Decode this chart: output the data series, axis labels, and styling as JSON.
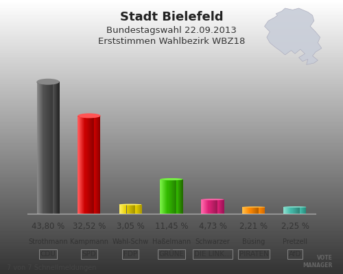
{
  "title": "Stadt Bielefeld",
  "subtitle1": "Bundestagswahl 22.09.2013",
  "subtitle2": "Erststimmen Wahlbezirk WBZ18",
  "footer": "7 von 7 Schnellmeldungen",
  "candidate_names": [
    "Strothmann",
    "Kampmann",
    "Wahl-Schw",
    "Haßelmann",
    "Schwarzer",
    "Büsing",
    "Pretzell"
  ],
  "party_names": [
    "CDU",
    "SPD",
    "FDP",
    "GRÜNE",
    "DIE LINK…",
    "PIRATEN",
    "AfD"
  ],
  "values": [
    43.8,
    32.52,
    3.05,
    11.45,
    4.73,
    2.21,
    2.25
  ],
  "value_labels": [
    "43,80 %",
    "32,52 %",
    "3,05 %",
    "11,45 %",
    "4,73 %",
    "2,21 %",
    "2,25 %"
  ],
  "bar_colors": [
    "#505050",
    "#cc0000",
    "#e8d000",
    "#33bb00",
    "#dd2277",
    "#ff8800",
    "#44bbaa"
  ],
  "bar_colors_light": [
    "#888888",
    "#ff5555",
    "#fff066",
    "#77ee44",
    "#ff66aa",
    "#ffbb44",
    "#88ddcc"
  ],
  "bar_colors_dark": [
    "#222222",
    "#880000",
    "#aa9800",
    "#226600",
    "#991155",
    "#cc6600",
    "#228877"
  ],
  "background_color": "#f5f5f5",
  "title_fontsize": 13,
  "subtitle_fontsize": 9.5,
  "value_fontsize": 8.5,
  "label_fontsize": 7.5,
  "ylim": [
    0,
    50
  ],
  "bar_width": 0.55
}
